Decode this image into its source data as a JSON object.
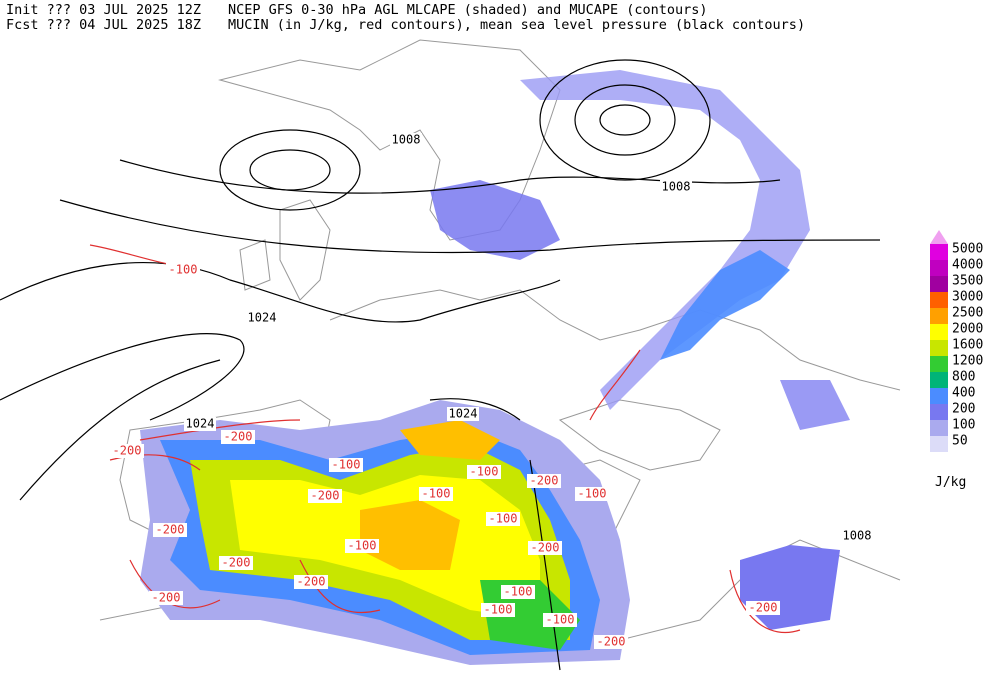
{
  "header": {
    "init": "Init  ??? 03 JUL 2025 12Z",
    "title_1": "NCEP GFS 0-30 hPa AGL MLCAPE (shaded) and MUCAPE (contours)",
    "forecast": "Fcst ??? 04 JUL 2025 18Z",
    "title_2": "MUCIN (in J/kg, red contours), mean sea level pressure (black contours)"
  },
  "pressure_labels": [
    1008,
    1008,
    1024,
    1024,
    1024,
    1008
  ],
  "cin_labels": [
    -100,
    -200,
    -200,
    -100,
    -100,
    -100,
    -200,
    -200,
    -100,
    -200,
    -200,
    -100,
    -200,
    -200,
    -100,
    -100,
    -200,
    -100,
    -200,
    -200,
    -100
  ],
  "colorbar": {
    "units": "J/kg",
    "top_color": "#f0a0f0",
    "levels": [
      {
        "value": 5000,
        "color": "#e000e0"
      },
      {
        "value": 4000,
        "color": "#c000c0"
      },
      {
        "value": 3500,
        "color": "#a000a0"
      },
      {
        "value": 3000,
        "color": "#ff6000"
      },
      {
        "value": 2500,
        "color": "#ffa000"
      },
      {
        "value": 2000,
        "color": "#ffff00"
      },
      {
        "value": 1600,
        "color": "#c8e600"
      },
      {
        "value": 1200,
        "color": "#33cc33"
      },
      {
        "value": 800,
        "color": "#00b478"
      },
      {
        "value": 400,
        "color": "#4b8cff"
      },
      {
        "value": 200,
        "color": "#7878f0"
      },
      {
        "value": 100,
        "color": "#aaaaee"
      },
      {
        "value": 50,
        "color": "#dcdcf8"
      }
    ]
  }
}
